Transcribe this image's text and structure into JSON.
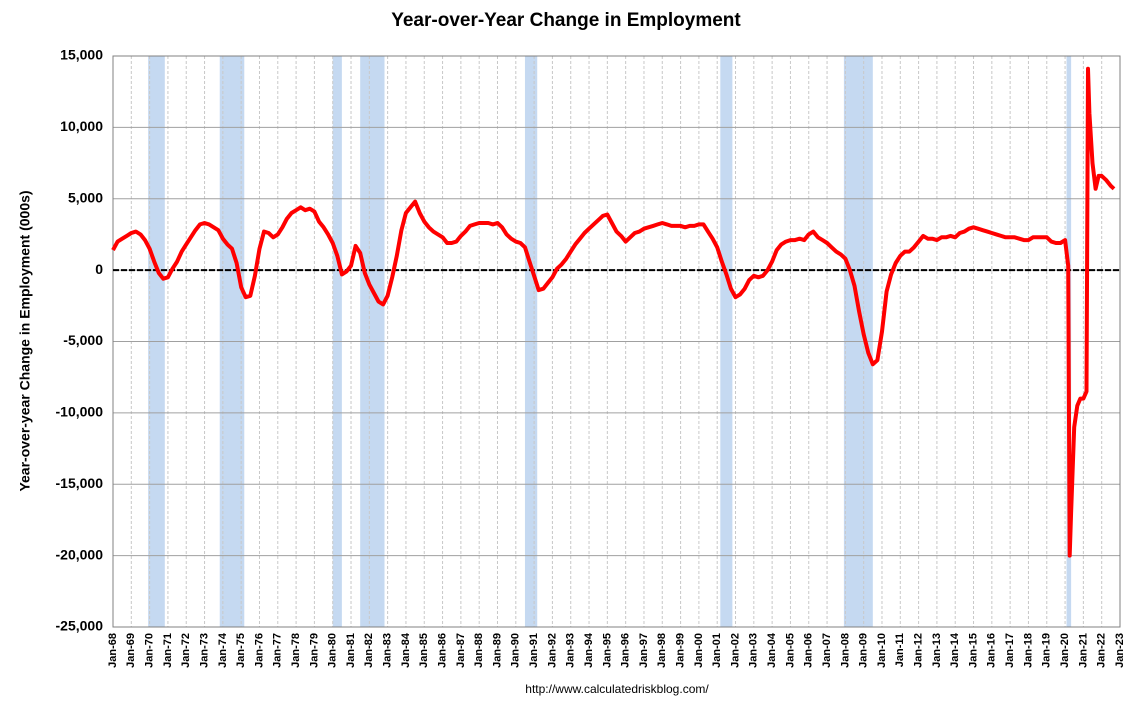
{
  "chart_data": {
    "type": "line",
    "title": "Year-over-Year Change in Employment",
    "y_label": "Year-over-year Change in Employment (000s)",
    "source": "http://www.calculatedriskblog.com/",
    "ylim": [
      -25000,
      15000
    ],
    "yticks": [
      {
        "value": -25000,
        "label": "-25,000"
      },
      {
        "value": -20000,
        "label": "-20,000"
      },
      {
        "value": -15000,
        "label": "-15,000"
      },
      {
        "value": -10000,
        "label": "-10,000"
      },
      {
        "value": -5000,
        "label": "-5,000"
      },
      0,
      {
        "value": 5000,
        "label": "5,000"
      },
      {
        "value": 10000,
        "label": "10,000"
      },
      {
        "value": 15000,
        "label": "15,000"
      }
    ],
    "xlim": [
      1968,
      2023
    ],
    "xticks": [
      {
        "value": 1968,
        "label": "Jan-68"
      },
      {
        "value": 1969,
        "label": "Jan-69"
      },
      {
        "value": 1970,
        "label": "Jan-70"
      },
      {
        "value": 1971,
        "label": "Jan-71"
      },
      {
        "value": 1972,
        "label": "Jan-72"
      },
      {
        "value": 1973,
        "label": "Jan-73"
      },
      {
        "value": 1974,
        "label": "Jan-74"
      },
      {
        "value": 1975,
        "label": "Jan-75"
      },
      {
        "value": 1976,
        "label": "Jan-76"
      },
      {
        "value": 1977,
        "label": "Jan-77"
      },
      {
        "value": 1978,
        "label": "Jan-78"
      },
      {
        "value": 1979,
        "label": "Jan-79"
      },
      {
        "value": 1980,
        "label": "Jan-80"
      },
      {
        "value": 1981,
        "label": "Jan-81"
      },
      {
        "value": 1982,
        "label": "Jan-82"
      },
      {
        "value": 1983,
        "label": "Jan-83"
      },
      {
        "value": 1984,
        "label": "Jan-84"
      },
      {
        "value": 1985,
        "label": "Jan-85"
      },
      {
        "value": 1986,
        "label": "Jan-86"
      },
      {
        "value": 1987,
        "label": "Jan-87"
      },
      {
        "value": 1988,
        "label": "Jan-88"
      },
      {
        "value": 1989,
        "label": "Jan-89"
      },
      {
        "value": 1990,
        "label": "Jan-90"
      },
      {
        "value": 1991,
        "label": "Jan-91"
      },
      {
        "value": 1992,
        "label": "Jan-92"
      },
      {
        "value": 1993,
        "label": "Jan-93"
      },
      {
        "value": 1994,
        "label": "Jan-94"
      },
      {
        "value": 1995,
        "label": "Jan-95"
      },
      {
        "value": 1996,
        "label": "Jan-96"
      },
      {
        "value": 1997,
        "label": "Jan-97"
      },
      {
        "value": 1998,
        "label": "Jan-98"
      },
      {
        "value": 1999,
        "label": "Jan-99"
      },
      {
        "value": 2000,
        "label": "Jan-00"
      },
      {
        "value": 2001,
        "label": "Jan-01"
      },
      {
        "value": 2002,
        "label": "Jan-02"
      },
      {
        "value": 2003,
        "label": "Jan-03"
      },
      {
        "value": 2004,
        "label": "Jan-04"
      },
      {
        "value": 2005,
        "label": "Jan-05"
      },
      {
        "value": 2006,
        "label": "Jan-06"
      },
      {
        "value": 2007,
        "label": "Jan-07"
      },
      {
        "value": 2008,
        "label": "Jan-08"
      },
      {
        "value": 2009,
        "label": "Jan-09"
      },
      {
        "value": 2010,
        "label": "Jan-10"
      },
      {
        "value": 2011,
        "label": "Jan-11"
      },
      {
        "value": 2012,
        "label": "Jan-12"
      },
      {
        "value": 2013,
        "label": "Jan-13"
      },
      {
        "value": 2014,
        "label": "Jan-14"
      },
      {
        "value": 2015,
        "label": "Jan-15"
      },
      {
        "value": 2016,
        "label": "Jan-16"
      },
      {
        "value": 2017,
        "label": "Jan-17"
      },
      {
        "value": 2018,
        "label": "Jan-18"
      },
      {
        "value": 2019,
        "label": "Jan-19"
      },
      {
        "value": 2020,
        "label": "Jan-20"
      },
      {
        "value": 2021,
        "label": "Jan-21"
      },
      {
        "value": 2022,
        "label": "Jan-22"
      },
      {
        "value": 2023,
        "label": "Jan-23"
      }
    ],
    "grid": true,
    "zero_line": 0,
    "recession_color": "#c5d9f1",
    "recessions": [
      [
        1969.92,
        1970.83
      ],
      [
        1973.83,
        1975.17
      ],
      [
        1980.0,
        1980.5
      ],
      [
        1981.5,
        1982.83
      ],
      [
        1990.5,
        1991.17
      ],
      [
        2001.17,
        2001.83
      ],
      [
        2007.92,
        2009.5
      ],
      [
        2020.08,
        2020.33
      ]
    ],
    "x": [
      1968,
      1968.25,
      1968.5,
      1968.75,
      1969,
      1969.25,
      1969.5,
      1969.75,
      1970,
      1970.25,
      1970.5,
      1970.75,
      1971,
      1971.25,
      1971.5,
      1971.75,
      1972,
      1972.25,
      1972.5,
      1972.75,
      1973,
      1973.25,
      1973.5,
      1973.75,
      1974,
      1974.25,
      1974.5,
      1974.75,
      1975,
      1975.25,
      1975.5,
      1975.75,
      1976,
      1976.25,
      1976.5,
      1976.75,
      1977,
      1977.25,
      1977.5,
      1977.75,
      1978,
      1978.25,
      1978.5,
      1978.75,
      1979,
      1979.25,
      1979.5,
      1979.75,
      1980,
      1980.25,
      1980.5,
      1980.75,
      1981,
      1981.25,
      1981.5,
      1981.75,
      1982,
      1982.25,
      1982.5,
      1982.75,
      1983,
      1983.25,
      1983.5,
      1983.75,
      1984,
      1984.25,
      1984.5,
      1984.75,
      1985,
      1985.25,
      1985.5,
      1985.75,
      1986,
      1986.25,
      1986.5,
      1986.75,
      1987,
      1987.25,
      1987.5,
      1987.75,
      1988,
      1988.25,
      1988.5,
      1988.75,
      1989,
      1989.25,
      1989.5,
      1989.75,
      1990,
      1990.25,
      1990.5,
      1990.75,
      1991,
      1991.25,
      1991.5,
      1991.75,
      1992,
      1992.25,
      1992.5,
      1992.75,
      1993,
      1993.25,
      1993.5,
      1993.75,
      1994,
      1994.25,
      1994.5,
      1994.75,
      1995,
      1995.25,
      1995.5,
      1995.75,
      1996,
      1996.25,
      1996.5,
      1996.75,
      1997,
      1997.25,
      1997.5,
      1997.75,
      1998,
      1998.25,
      1998.5,
      1998.75,
      1999,
      1999.25,
      1999.5,
      1999.75,
      2000,
      2000.25,
      2000.5,
      2000.75,
      2001,
      2001.25,
      2001.5,
      2001.75,
      2002,
      2002.25,
      2002.5,
      2002.75,
      2003,
      2003.25,
      2003.5,
      2003.75,
      2004,
      2004.25,
      2004.5,
      2004.75,
      2005,
      2005.25,
      2005.5,
      2005.75,
      2006,
      2006.25,
      2006.5,
      2006.75,
      2007,
      2007.25,
      2007.5,
      2007.75,
      2008,
      2008.25,
      2008.5,
      2008.75,
      2009,
      2009.25,
      2009.5,
      2009.75,
      2010,
      2010.25,
      2010.5,
      2010.75,
      2011,
      2011.25,
      2011.5,
      2011.75,
      2012,
      2012.25,
      2012.5,
      2012.75,
      2013,
      2013.25,
      2013.5,
      2013.75,
      2014,
      2014.25,
      2014.5,
      2014.75,
      2015,
      2015.25,
      2015.5,
      2015.75,
      2016,
      2016.25,
      2016.5,
      2016.75,
      2017,
      2017.25,
      2017.5,
      2017.75,
      2018,
      2018.25,
      2018.5,
      2018.75,
      2019,
      2019.25,
      2019.5,
      2019.75,
      2020,
      2020.17,
      2020.25,
      2020.33,
      2020.5,
      2020.67,
      2020.83,
      2021,
      2021.17,
      2021.25,
      2021.33,
      2021.5,
      2021.67,
      2021.83,
      2022,
      2022.25,
      2022.5,
      2022.67
    ],
    "series": [
      {
        "name": "Year-over-Year Change in Employment",
        "color": "#ff0000",
        "values": [
          1400,
          2000,
          2200,
          2400,
          2600,
          2700,
          2500,
          2100,
          1500,
          600,
          -200,
          -600,
          -500,
          100,
          600,
          1300,
          1800,
          2300,
          2800,
          3200,
          3300,
          3200,
          3000,
          2800,
          2200,
          1800,
          1500,
          500,
          -1200,
          -1900,
          -1800,
          -400,
          1500,
          2700,
          2600,
          2300,
          2500,
          3000,
          3600,
          4000,
          4200,
          4400,
          4200,
          4300,
          4100,
          3400,
          3000,
          2500,
          1900,
          1000,
          -300,
          -100,
          300,
          1700,
          1200,
          -200,
          -1000,
          -1600,
          -2200,
          -2400,
          -1800,
          -500,
          1000,
          2800,
          4000,
          4400,
          4800,
          4000,
          3400,
          3000,
          2700,
          2500,
          2300,
          1900,
          1900,
          2000,
          2400,
          2700,
          3100,
          3200,
          3300,
          3300,
          3300,
          3200,
          3300,
          3000,
          2500,
          2200,
          2000,
          1900,
          1600,
          600,
          -400,
          -1400,
          -1300,
          -900,
          -500,
          100,
          400,
          800,
          1300,
          1800,
          2200,
          2600,
          2900,
          3200,
          3500,
          3800,
          3900,
          3300,
          2700,
          2400,
          2000,
          2300,
          2600,
          2700,
          2900,
          3000,
          3100,
          3200,
          3300,
          3200,
          3100,
          3100,
          3100,
          3000,
          3100,
          3100,
          3200,
          3200,
          2700,
          2200,
          1600,
          600,
          -300,
          -1300,
          -1900,
          -1700,
          -1300,
          -700,
          -400,
          -500,
          -400,
          0,
          600,
          1400,
          1800,
          2000,
          2100,
          2100,
          2200,
          2100,
          2500,
          2700,
          2300,
          2100,
          1900,
          1600,
          1300,
          1100,
          800,
          0,
          -1100,
          -2900,
          -4500,
          -5800,
          -6600,
          -6300,
          -4300,
          -1500,
          -300,
          500,
          1000,
          1300,
          1300,
          1600,
          2000,
          2400,
          2200,
          2200,
          2100,
          2300,
          2300,
          2400,
          2300,
          2600,
          2700,
          2900,
          3000,
          2900,
          2800,
          2700,
          2600,
          2500,
          2400,
          2300,
          2300,
          2300,
          2200,
          2100,
          2100,
          2300,
          2300,
          2300,
          2300,
          2000,
          1900,
          1900,
          2100,
          300,
          -20000,
          -17000,
          -11000,
          -9500,
          -9000,
          -9000,
          -8500,
          14100,
          11000,
          7500,
          5700,
          6600,
          6600,
          6300,
          5900,
          5700
        ]
      }
    ]
  }
}
